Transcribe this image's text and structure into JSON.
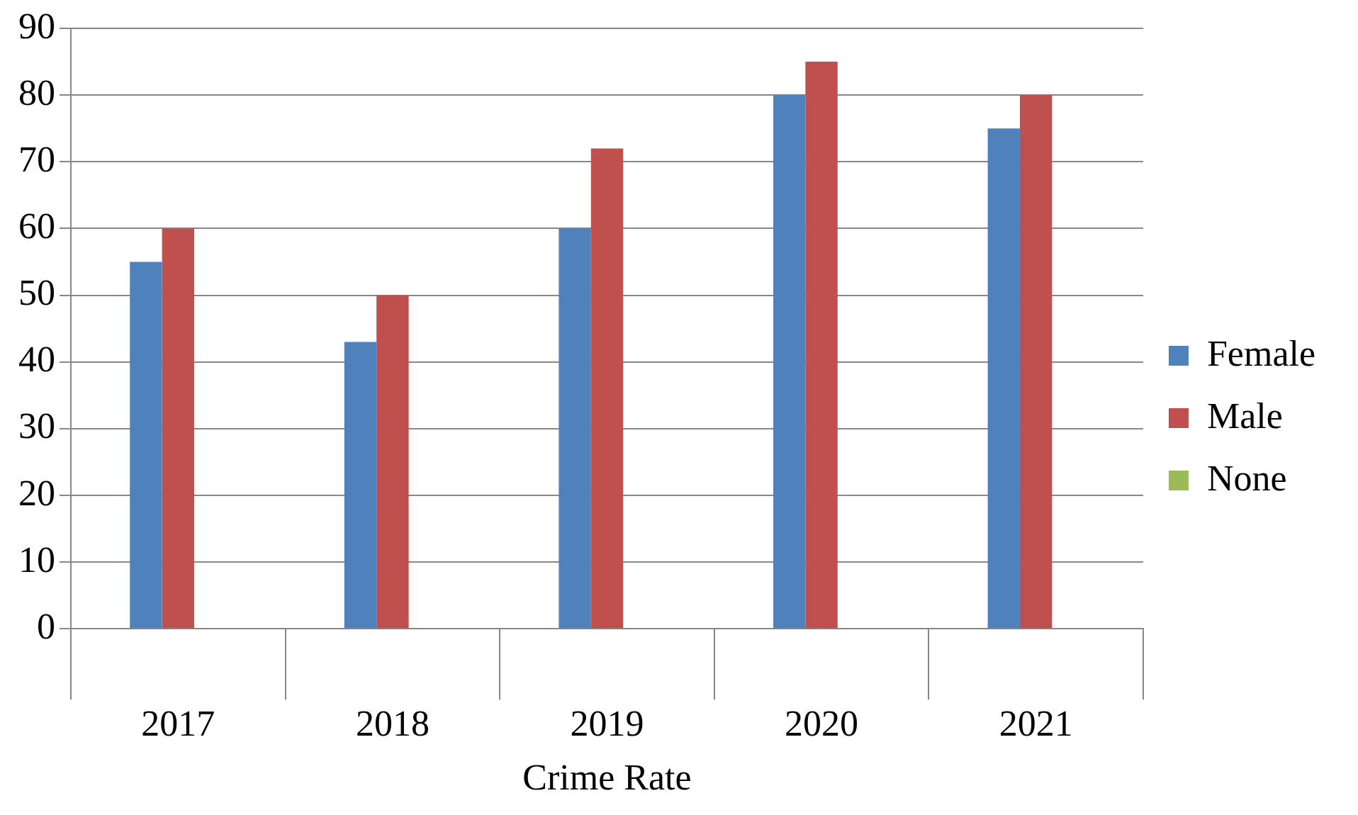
{
  "chart_data": {
    "type": "bar",
    "xlabel": "Crime Rate",
    "categories": [
      "2017",
      "2018",
      "2019",
      "2020",
      "2021"
    ],
    "series": [
      {
        "name": "Female",
        "color": "#4f81bd",
        "values": [
          55,
          43,
          60,
          80,
          75
        ]
      },
      {
        "name": "Male",
        "color": "#c0504d",
        "values": [
          60,
          50,
          72,
          85,
          80
        ]
      },
      {
        "name": "None",
        "color": "#9bbb59",
        "values": [
          0,
          0,
          0,
          0,
          0
        ]
      }
    ],
    "ylim": [
      0,
      90
    ],
    "yticks": [
      0,
      10,
      20,
      30,
      40,
      50,
      60,
      70,
      80,
      90
    ],
    "grid": "y",
    "legend": "right"
  }
}
